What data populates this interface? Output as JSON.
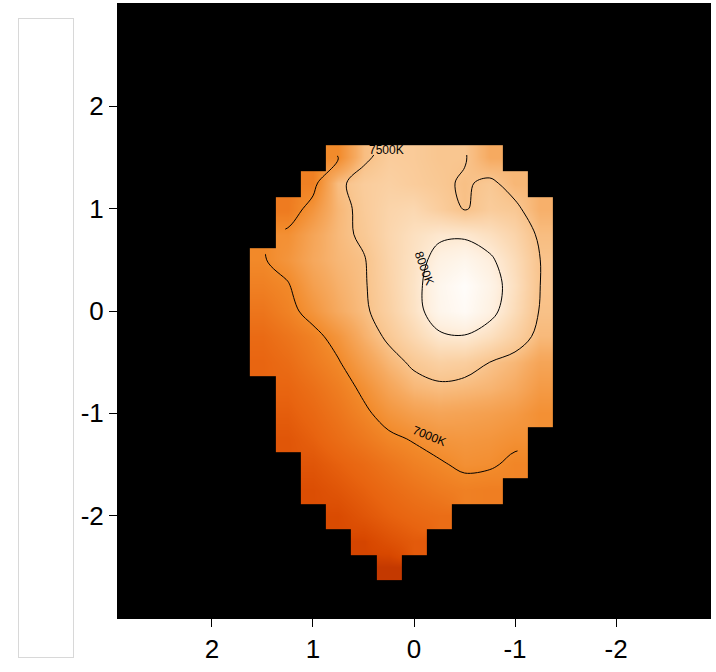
{
  "chart_data": {
    "type": "heatmap",
    "x": [
      1.5,
      1.25,
      1.0,
      0.75,
      0.5,
      0.25,
      0,
      -0.25,
      -0.5,
      -0.75,
      -1.0,
      -1.25,
      -1.5
    ],
    "y": [
      -2.5,
      -2.25,
      -2.0,
      -1.75,
      -1.5,
      -1.25,
      -1.0,
      -0.75,
      -0.5,
      -0.25,
      0,
      0.25,
      0.5,
      0.75,
      1.0,
      1.25,
      1.5,
      1.75
    ],
    "z": [
      [
        null,
        null,
        null,
        null,
        null,
        6400,
        null,
        null,
        null,
        null,
        null,
        null,
        null
      ],
      [
        null,
        null,
        null,
        null,
        6450,
        6520,
        6580,
        null,
        null,
        null,
        null,
        null,
        null
      ],
      [
        null,
        null,
        null,
        6480,
        6550,
        6620,
        6680,
        6720,
        null,
        null,
        null,
        null,
        null
      ],
      [
        null,
        null,
        6500,
        6550,
        6620,
        6700,
        6780,
        6850,
        6900,
        6880,
        null,
        null,
        null
      ],
      [
        null,
        null,
        6550,
        6620,
        6700,
        6800,
        6900,
        6970,
        7050,
        7030,
        6950,
        null,
        null
      ],
      [
        null,
        6550,
        6620,
        6720,
        6830,
        6950,
        7020,
        7100,
        7120,
        7100,
        7050,
        null,
        null
      ],
      [
        null,
        6600,
        6680,
        6800,
        6950,
        7100,
        7200,
        7250,
        7230,
        7200,
        7150,
        7050,
        null
      ],
      [
        null,
        6650,
        6750,
        6880,
        7050,
        7250,
        7400,
        7450,
        7420,
        7380,
        7300,
        7150,
        null
      ],
      [
        6650,
        6720,
        6850,
        6980,
        7200,
        7400,
        7550,
        7650,
        7620,
        7500,
        7400,
        7250,
        null
      ],
      [
        6700,
        6800,
        6920,
        7100,
        7350,
        7550,
        7750,
        7950,
        7980,
        7850,
        7650,
        7420,
        null
      ],
      [
        6800,
        6920,
        7100,
        7300,
        7450,
        7650,
        7880,
        8180,
        8300,
        8100,
        7800,
        7480,
        null
      ],
      [
        6900,
        6980,
        7200,
        7350,
        7470,
        7680,
        7900,
        8200,
        8350,
        8150,
        7850,
        7500,
        null
      ],
      [
        6980,
        7100,
        7280,
        7400,
        7480,
        7700,
        7880,
        8100,
        8200,
        8050,
        7800,
        7500,
        null
      ],
      [
        null,
        7050,
        7250,
        7420,
        7550,
        7720,
        7850,
        7950,
        7950,
        7850,
        7700,
        7450,
        null
      ],
      [
        null,
        6850,
        7100,
        7400,
        7580,
        7700,
        7750,
        7620,
        7480,
        7600,
        7550,
        7350,
        null
      ],
      [
        null,
        null,
        6900,
        7450,
        7600,
        7650,
        7600,
        7550,
        7470,
        7550,
        7400,
        null,
        null
      ],
      [
        null,
        null,
        null,
        7000,
        7450,
        7600,
        7580,
        7520,
        7520,
        7300,
        null,
        null,
        null
      ],
      [
        null,
        null,
        null,
        null,
        null,
        null,
        null,
        null,
        null,
        null,
        null,
        null,
        null
      ]
    ],
    "zlim": [
      6200,
      8400
    ],
    "contour_levels": [
      7000,
      7500,
      8000
    ],
    "annotations": [
      {
        "text": "7500K",
        "x": 0.27,
        "y": 1.57
      },
      {
        "text": "8000K",
        "x": -0.1,
        "y": 0.42
      },
      {
        "text": "7000K",
        "x": -0.15,
        "y": -1.22
      }
    ],
    "xlim": [
      2.93,
      -2.93
    ],
    "ylim": [
      -3,
      3
    ],
    "xticks": [
      2,
      1,
      0,
      -1,
      -2
    ],
    "yticks": [
      -2,
      -1,
      0,
      1,
      2
    ],
    "grid": false
  }
}
